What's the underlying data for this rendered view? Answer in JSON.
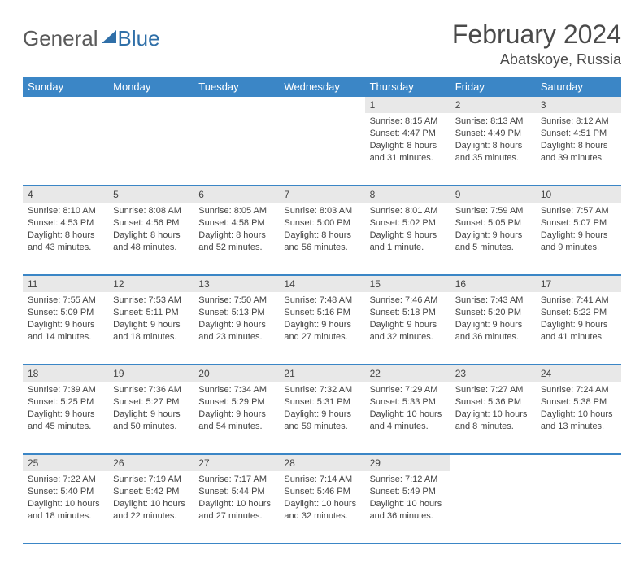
{
  "brand": {
    "general": "General",
    "blue": "Blue"
  },
  "title": "February 2024",
  "location": "Abatskoye, Russia",
  "colors": {
    "header_bg": "#3b86c6",
    "header_text": "#ffffff",
    "cell_border": "#3b86c6",
    "daynum_bg": "#e8e8e8",
    "text": "#444444",
    "logo_gray": "#5a5a5a",
    "logo_blue": "#2f6fa8"
  },
  "dayNames": [
    "Sunday",
    "Monday",
    "Tuesday",
    "Wednesday",
    "Thursday",
    "Friday",
    "Saturday"
  ],
  "weeks": [
    [
      {
        "num": "",
        "sunrise": "",
        "sunset": "",
        "day1": "",
        "day2": ""
      },
      {
        "num": "",
        "sunrise": "",
        "sunset": "",
        "day1": "",
        "day2": ""
      },
      {
        "num": "",
        "sunrise": "",
        "sunset": "",
        "day1": "",
        "day2": ""
      },
      {
        "num": "",
        "sunrise": "",
        "sunset": "",
        "day1": "",
        "day2": ""
      },
      {
        "num": "1",
        "sunrise": "Sunrise: 8:15 AM",
        "sunset": "Sunset: 4:47 PM",
        "day1": "Daylight: 8 hours",
        "day2": "and 31 minutes."
      },
      {
        "num": "2",
        "sunrise": "Sunrise: 8:13 AM",
        "sunset": "Sunset: 4:49 PM",
        "day1": "Daylight: 8 hours",
        "day2": "and 35 minutes."
      },
      {
        "num": "3",
        "sunrise": "Sunrise: 8:12 AM",
        "sunset": "Sunset: 4:51 PM",
        "day1": "Daylight: 8 hours",
        "day2": "and 39 minutes."
      }
    ],
    [
      {
        "num": "4",
        "sunrise": "Sunrise: 8:10 AM",
        "sunset": "Sunset: 4:53 PM",
        "day1": "Daylight: 8 hours",
        "day2": "and 43 minutes."
      },
      {
        "num": "5",
        "sunrise": "Sunrise: 8:08 AM",
        "sunset": "Sunset: 4:56 PM",
        "day1": "Daylight: 8 hours",
        "day2": "and 48 minutes."
      },
      {
        "num": "6",
        "sunrise": "Sunrise: 8:05 AM",
        "sunset": "Sunset: 4:58 PM",
        "day1": "Daylight: 8 hours",
        "day2": "and 52 minutes."
      },
      {
        "num": "7",
        "sunrise": "Sunrise: 8:03 AM",
        "sunset": "Sunset: 5:00 PM",
        "day1": "Daylight: 8 hours",
        "day2": "and 56 minutes."
      },
      {
        "num": "8",
        "sunrise": "Sunrise: 8:01 AM",
        "sunset": "Sunset: 5:02 PM",
        "day1": "Daylight: 9 hours",
        "day2": "and 1 minute."
      },
      {
        "num": "9",
        "sunrise": "Sunrise: 7:59 AM",
        "sunset": "Sunset: 5:05 PM",
        "day1": "Daylight: 9 hours",
        "day2": "and 5 minutes."
      },
      {
        "num": "10",
        "sunrise": "Sunrise: 7:57 AM",
        "sunset": "Sunset: 5:07 PM",
        "day1": "Daylight: 9 hours",
        "day2": "and 9 minutes."
      }
    ],
    [
      {
        "num": "11",
        "sunrise": "Sunrise: 7:55 AM",
        "sunset": "Sunset: 5:09 PM",
        "day1": "Daylight: 9 hours",
        "day2": "and 14 minutes."
      },
      {
        "num": "12",
        "sunrise": "Sunrise: 7:53 AM",
        "sunset": "Sunset: 5:11 PM",
        "day1": "Daylight: 9 hours",
        "day2": "and 18 minutes."
      },
      {
        "num": "13",
        "sunrise": "Sunrise: 7:50 AM",
        "sunset": "Sunset: 5:13 PM",
        "day1": "Daylight: 9 hours",
        "day2": "and 23 minutes."
      },
      {
        "num": "14",
        "sunrise": "Sunrise: 7:48 AM",
        "sunset": "Sunset: 5:16 PM",
        "day1": "Daylight: 9 hours",
        "day2": "and 27 minutes."
      },
      {
        "num": "15",
        "sunrise": "Sunrise: 7:46 AM",
        "sunset": "Sunset: 5:18 PM",
        "day1": "Daylight: 9 hours",
        "day2": "and 32 minutes."
      },
      {
        "num": "16",
        "sunrise": "Sunrise: 7:43 AM",
        "sunset": "Sunset: 5:20 PM",
        "day1": "Daylight: 9 hours",
        "day2": "and 36 minutes."
      },
      {
        "num": "17",
        "sunrise": "Sunrise: 7:41 AM",
        "sunset": "Sunset: 5:22 PM",
        "day1": "Daylight: 9 hours",
        "day2": "and 41 minutes."
      }
    ],
    [
      {
        "num": "18",
        "sunrise": "Sunrise: 7:39 AM",
        "sunset": "Sunset: 5:25 PM",
        "day1": "Daylight: 9 hours",
        "day2": "and 45 minutes."
      },
      {
        "num": "19",
        "sunrise": "Sunrise: 7:36 AM",
        "sunset": "Sunset: 5:27 PM",
        "day1": "Daylight: 9 hours",
        "day2": "and 50 minutes."
      },
      {
        "num": "20",
        "sunrise": "Sunrise: 7:34 AM",
        "sunset": "Sunset: 5:29 PM",
        "day1": "Daylight: 9 hours",
        "day2": "and 54 minutes."
      },
      {
        "num": "21",
        "sunrise": "Sunrise: 7:32 AM",
        "sunset": "Sunset: 5:31 PM",
        "day1": "Daylight: 9 hours",
        "day2": "and 59 minutes."
      },
      {
        "num": "22",
        "sunrise": "Sunrise: 7:29 AM",
        "sunset": "Sunset: 5:33 PM",
        "day1": "Daylight: 10 hours",
        "day2": "and 4 minutes."
      },
      {
        "num": "23",
        "sunrise": "Sunrise: 7:27 AM",
        "sunset": "Sunset: 5:36 PM",
        "day1": "Daylight: 10 hours",
        "day2": "and 8 minutes."
      },
      {
        "num": "24",
        "sunrise": "Sunrise: 7:24 AM",
        "sunset": "Sunset: 5:38 PM",
        "day1": "Daylight: 10 hours",
        "day2": "and 13 minutes."
      }
    ],
    [
      {
        "num": "25",
        "sunrise": "Sunrise: 7:22 AM",
        "sunset": "Sunset: 5:40 PM",
        "day1": "Daylight: 10 hours",
        "day2": "and 18 minutes."
      },
      {
        "num": "26",
        "sunrise": "Sunrise: 7:19 AM",
        "sunset": "Sunset: 5:42 PM",
        "day1": "Daylight: 10 hours",
        "day2": "and 22 minutes."
      },
      {
        "num": "27",
        "sunrise": "Sunrise: 7:17 AM",
        "sunset": "Sunset: 5:44 PM",
        "day1": "Daylight: 10 hours",
        "day2": "and 27 minutes."
      },
      {
        "num": "28",
        "sunrise": "Sunrise: 7:14 AM",
        "sunset": "Sunset: 5:46 PM",
        "day1": "Daylight: 10 hours",
        "day2": "and 32 minutes."
      },
      {
        "num": "29",
        "sunrise": "Sunrise: 7:12 AM",
        "sunset": "Sunset: 5:49 PM",
        "day1": "Daylight: 10 hours",
        "day2": "and 36 minutes."
      },
      {
        "num": "",
        "sunrise": "",
        "sunset": "",
        "day1": "",
        "day2": ""
      },
      {
        "num": "",
        "sunrise": "",
        "sunset": "",
        "day1": "",
        "day2": ""
      }
    ]
  ]
}
